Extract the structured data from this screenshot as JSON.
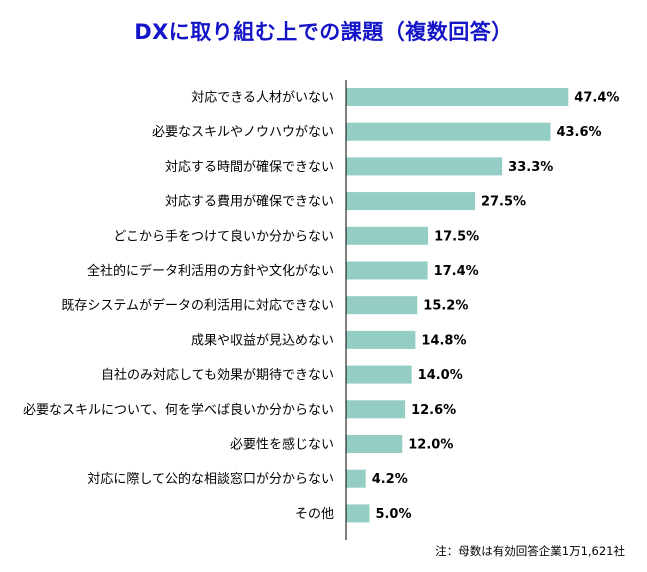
{
  "chart_data": {
    "type": "bar",
    "orientation": "horizontal",
    "title": "DXに取り組む上での課題（複数回答）",
    "categories": [
      "対応できる人材がいない",
      "必要なスキルやノウハウがない",
      "対応する時間が確保できない",
      "対応する費用が確保できない",
      "どこから手をつけて良いか分からない",
      "全社的にデータ利活用の方針や文化がない",
      "既存システムがデータの利活用に対応できない",
      "成果や収益が見込めない",
      "自社のみ対応しても効果が期待できない",
      "必要なスキルについて、何を学べば良いか分からない",
      "必要性を感じない",
      "対応に際して公的な相談窓口が分からない",
      "その他"
    ],
    "values": [
      47.4,
      43.6,
      33.3,
      27.5,
      17.5,
      17.4,
      15.2,
      14.8,
      14.0,
      12.6,
      12.0,
      4.2,
      5.0
    ],
    "value_labels": [
      "47.4%",
      "43.6%",
      "33.3%",
      "27.5%",
      "17.5%",
      "17.4%",
      "15.2%",
      "14.8%",
      "14.0%",
      "12.6%",
      "12.0%",
      "4.2%",
      "5.0%"
    ],
    "xlim": [
      0,
      50
    ],
    "grid": false,
    "legend": "none",
    "bar_color": "#94cdc3",
    "title_color": "#1414c8",
    "note": "注：母数は有効回答企業1万1,621社"
  }
}
